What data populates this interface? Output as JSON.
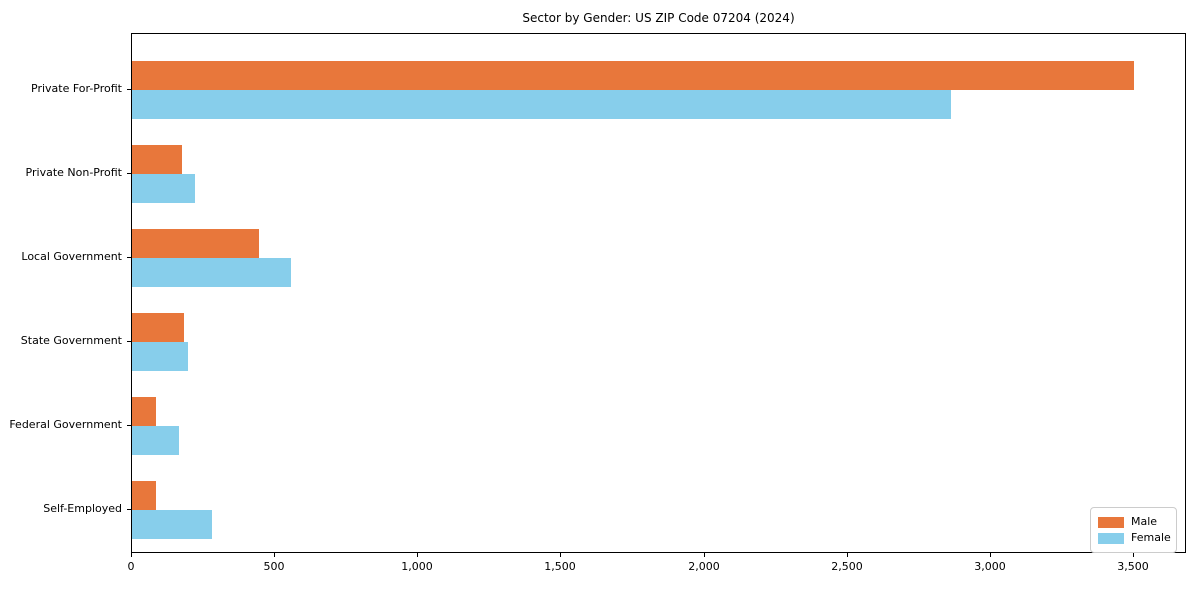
{
  "chart_data": {
    "type": "bar",
    "orientation": "horizontal",
    "title": "Sector by Gender: US ZIP Code 07204 (2024)",
    "categories": [
      "Private For-Profit",
      "Private Non-Profit",
      "Local Government",
      "State Government",
      "Federal Government",
      "Self-Employed"
    ],
    "series": [
      {
        "name": "Male",
        "color": "#e8773b",
        "values": [
          3500,
          175,
          445,
          180,
          85,
          85
        ]
      },
      {
        "name": "Female",
        "color": "#87ceeb",
        "values": [
          2860,
          220,
          555,
          195,
          165,
          280
        ]
      }
    ],
    "xlabel": "",
    "ylabel": "",
    "x_tick_values": [
      0,
      500,
      1000,
      1500,
      2000,
      2500,
      3000,
      3500
    ],
    "x_tick_labels": [
      "0",
      "500",
      "1,000",
      "1,500",
      "2,000",
      "2,500",
      "3,000",
      "3,500"
    ],
    "xlim": [
      0,
      3685
    ],
    "grid": false,
    "legend_position": "lower right",
    "background_color": "#ffffff",
    "spine_color": "#000000"
  },
  "legend": {
    "items": [
      {
        "label": "Male",
        "color": "#e8773b"
      },
      {
        "label": "Female",
        "color": "#87ceeb"
      }
    ]
  }
}
